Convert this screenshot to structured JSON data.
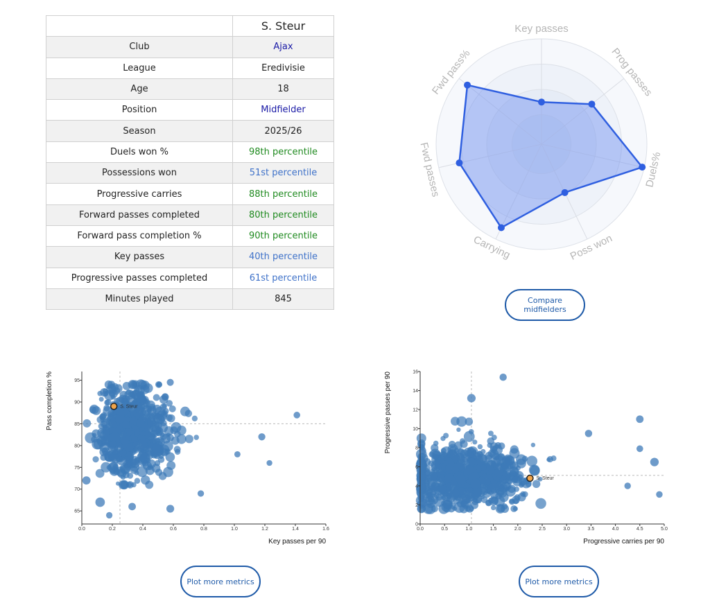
{
  "player_table": {
    "player_name": "S. Steur",
    "rows": [
      {
        "label": "Club",
        "value": "Ajax",
        "color": "#1a1aa6"
      },
      {
        "label": "League",
        "value": "Eredivisie",
        "color": "#222222"
      },
      {
        "label": "Age",
        "value": "18",
        "color": "#222222"
      },
      {
        "label": "Position",
        "value": "Midfielder",
        "color": "#1a1aa6"
      },
      {
        "label": "Season",
        "value": "2025/26",
        "color": "#222222"
      },
      {
        "label": "Duels won %",
        "value": "98th percentile",
        "color": "#1f8a1f"
      },
      {
        "label": "Possessions won",
        "value": "51st percentile",
        "color": "#3f72c9"
      },
      {
        "label": "Progressive carries",
        "value": "88th percentile",
        "color": "#1f8a1f"
      },
      {
        "label": "Forward passes completed",
        "value": "80th percentile",
        "color": "#1f8a1f"
      },
      {
        "label": "Forward pass completion %",
        "value": "90th percentile",
        "color": "#1f8a1f"
      },
      {
        "label": "Key passes",
        "value": "40th percentile",
        "color": "#3f72c9"
      },
      {
        "label": "Progressive passes completed",
        "value": "61st percentile",
        "color": "#3f72c9"
      },
      {
        "label": "Minutes played",
        "value": "845",
        "color": "#222222"
      }
    ]
  },
  "radar": {
    "axes": [
      {
        "label": "Key passes",
        "value": 40
      },
      {
        "label": "Prog passes",
        "value": 61
      },
      {
        "label": "Duels%",
        "value": 98
      },
      {
        "label": "Poss won",
        "value": 51
      },
      {
        "label": "Carrying",
        "value": 88
      },
      {
        "label": "Fwd passes",
        "value": 80
      },
      {
        "label": "Fwd pass%",
        "value": 90
      }
    ],
    "fill_color": "#6d8ff0",
    "line_color": "#2f5fe0"
  },
  "buttons": {
    "compare_label": "Compare\nmidfielders",
    "plot_more_label_1": "Plot more metrics",
    "plot_more_label_2": "Plot more metrics"
  },
  "chart_data": [
    {
      "type": "scatter",
      "title": "",
      "xlabel": "Key passes per 90",
      "ylabel": "Pass completion %",
      "xlim": [
        0,
        1.6
      ],
      "ylim": [
        62,
        97
      ],
      "xticks": [
        "0.0",
        "0.2",
        "0.4",
        "0.6",
        "0.8",
        "1.0",
        "1.2",
        "1.4",
        "1.6"
      ],
      "yticks": [
        "65",
        "70",
        "75",
        "80",
        "85",
        "90",
        "95"
      ],
      "reference_lines": {
        "x": 0.25,
        "y": 85
      },
      "highlight": {
        "name": "S. Steur",
        "x": 0.21,
        "y": 89
      },
      "point_color": "#3d7ab8",
      "highlight_color": "#f0a44a",
      "notable_points": [
        {
          "x": 1.41,
          "y": 87
        },
        {
          "x": 1.23,
          "y": 76
        },
        {
          "x": 1.18,
          "y": 82
        },
        {
          "x": 1.02,
          "y": 78
        },
        {
          "x": 0.78,
          "y": 69
        },
        {
          "x": 0.12,
          "y": 67
        },
        {
          "x": 0.18,
          "y": 64
        },
        {
          "x": 0.58,
          "y": 65.5
        },
        {
          "x": 0.33,
          "y": 66
        },
        {
          "x": 0.58,
          "y": 94.5
        },
        {
          "x": 0.03,
          "y": 72
        }
      ]
    },
    {
      "type": "scatter",
      "title": "",
      "xlabel": "Progressive carries per 90",
      "ylabel": "Progressive passes per 90",
      "xlim": [
        0,
        5
      ],
      "ylim": [
        0,
        16
      ],
      "xticks": [
        "0.0",
        "0.5",
        "1.0",
        "1.5",
        "2.0",
        "2.5",
        "3.0",
        "3.5",
        "4.0",
        "4.5",
        "5.0"
      ],
      "yticks": [
        "0",
        "2",
        "4",
        "6",
        "8",
        "10",
        "12",
        "14",
        "16"
      ],
      "reference_lines": {
        "x": 1.05,
        "y": 5.1
      },
      "highlight": {
        "name": "S. Steur",
        "x": 2.25,
        "y": 4.8
      },
      "point_color": "#3d7ab8",
      "highlight_color": "#f0a44a",
      "notable_points": [
        {
          "x": 1.7,
          "y": 15.4
        },
        {
          "x": 4.5,
          "y": 11.0
        },
        {
          "x": 4.5,
          "y": 7.9
        },
        {
          "x": 4.8,
          "y": 6.5
        },
        {
          "x": 4.9,
          "y": 3.1
        },
        {
          "x": 4.25,
          "y": 4.0
        },
        {
          "x": 0.05,
          "y": 7.7
        },
        {
          "x": 0.05,
          "y": 2.2
        },
        {
          "x": 1.05,
          "y": 13.2
        },
        {
          "x": 3.45,
          "y": 9.5
        }
      ]
    }
  ]
}
